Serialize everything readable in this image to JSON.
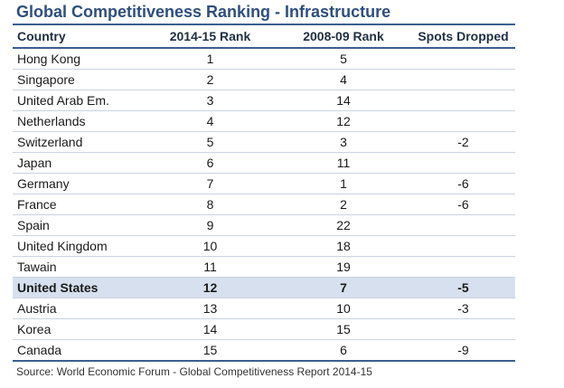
{
  "title": "Global Competitiveness Ranking - Infrastructure",
  "table": {
    "headers": [
      "Country",
      "2014-15 Rank",
      "2008-09 Rank",
      "Spots Dropped"
    ],
    "rows": [
      {
        "country": "Hong Kong",
        "rank_2014": "1",
        "rank_2008": "5",
        "dropped": ""
      },
      {
        "country": "Singapore",
        "rank_2014": "2",
        "rank_2008": "4",
        "dropped": ""
      },
      {
        "country": "United Arab Em.",
        "rank_2014": "3",
        "rank_2008": "14",
        "dropped": ""
      },
      {
        "country": "Netherlands",
        "rank_2014": "4",
        "rank_2008": "12",
        "dropped": ""
      },
      {
        "country": "Switzerland",
        "rank_2014": "5",
        "rank_2008": "3",
        "dropped": "-2"
      },
      {
        "country": "Japan",
        "rank_2014": "6",
        "rank_2008": "11",
        "dropped": ""
      },
      {
        "country": "Germany",
        "rank_2014": "7",
        "rank_2008": "1",
        "dropped": "-6"
      },
      {
        "country": "France",
        "rank_2014": "8",
        "rank_2008": "2",
        "dropped": "-6"
      },
      {
        "country": "Spain",
        "rank_2014": "9",
        "rank_2008": "22",
        "dropped": ""
      },
      {
        "country": "United Kingdom",
        "rank_2014": "10",
        "rank_2008": "18",
        "dropped": ""
      },
      {
        "country": "Tawain",
        "rank_2014": "11",
        "rank_2008": "19",
        "dropped": ""
      },
      {
        "country": "United States",
        "rank_2014": "12",
        "rank_2008": "7",
        "dropped": "-5",
        "highlighted": true
      },
      {
        "country": "Austria",
        "rank_2014": "13",
        "rank_2008": "10",
        "dropped": "-3"
      },
      {
        "country": "Korea",
        "rank_2014": "14",
        "rank_2008": "15",
        "dropped": ""
      },
      {
        "country": "Canada",
        "rank_2014": "15",
        "rank_2008": "6",
        "dropped": "-9"
      }
    ]
  },
  "source": "Source: World Economic Forum - Global Competitiveness Report 2014-15",
  "colors": {
    "title": "#2e4f7f",
    "rule": "#3b5f8f",
    "highlight_row": "#d6e0ef"
  }
}
